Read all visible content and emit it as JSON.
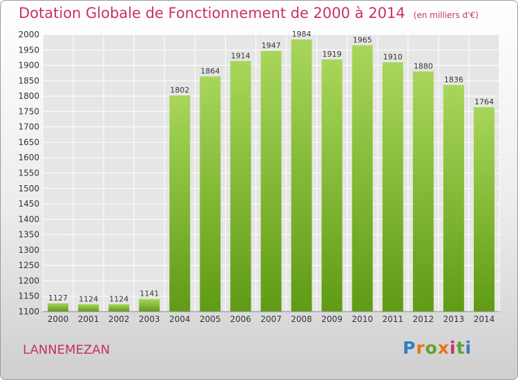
{
  "header": {
    "title": "Dotation Globale de Fonctionnement de 2000 à 2014",
    "unit": "(en milliers d'€)"
  },
  "footer": {
    "commune": "LANNEMEZAN",
    "logo": [
      "P",
      "r",
      "o",
      "x",
      "i",
      "t",
      "i"
    ],
    "logo_colors": [
      "#2f7ec9",
      "#e8731a",
      "#5fa233",
      "#e8731a",
      "#c8325f",
      "#5fa233",
      "#2f7ec9"
    ]
  },
  "colors": {
    "title": "#c8325f",
    "bar_light": "#a8d65a",
    "bar_dark": "#5f9b14",
    "grid": "#ffffff",
    "text": "#333333"
  },
  "chart_data": {
    "type": "bar",
    "categories": [
      "2000",
      "2001",
      "2002",
      "2003",
      "2004",
      "2005",
      "2006",
      "2007",
      "2008",
      "2009",
      "2010",
      "2011",
      "2012",
      "2013",
      "2014"
    ],
    "values": [
      1127,
      1124,
      1124,
      1141,
      1802,
      1864,
      1914,
      1947,
      1984,
      1919,
      1965,
      1910,
      1880,
      1836,
      1764
    ],
    "ylim": [
      1100,
      2000
    ],
    "yticks": [
      1100,
      1150,
      1200,
      1250,
      1300,
      1350,
      1400,
      1450,
      1500,
      1550,
      1600,
      1650,
      1700,
      1750,
      1800,
      1850,
      1900,
      1950,
      2000
    ],
    "grid": true,
    "data_labels": true
  }
}
